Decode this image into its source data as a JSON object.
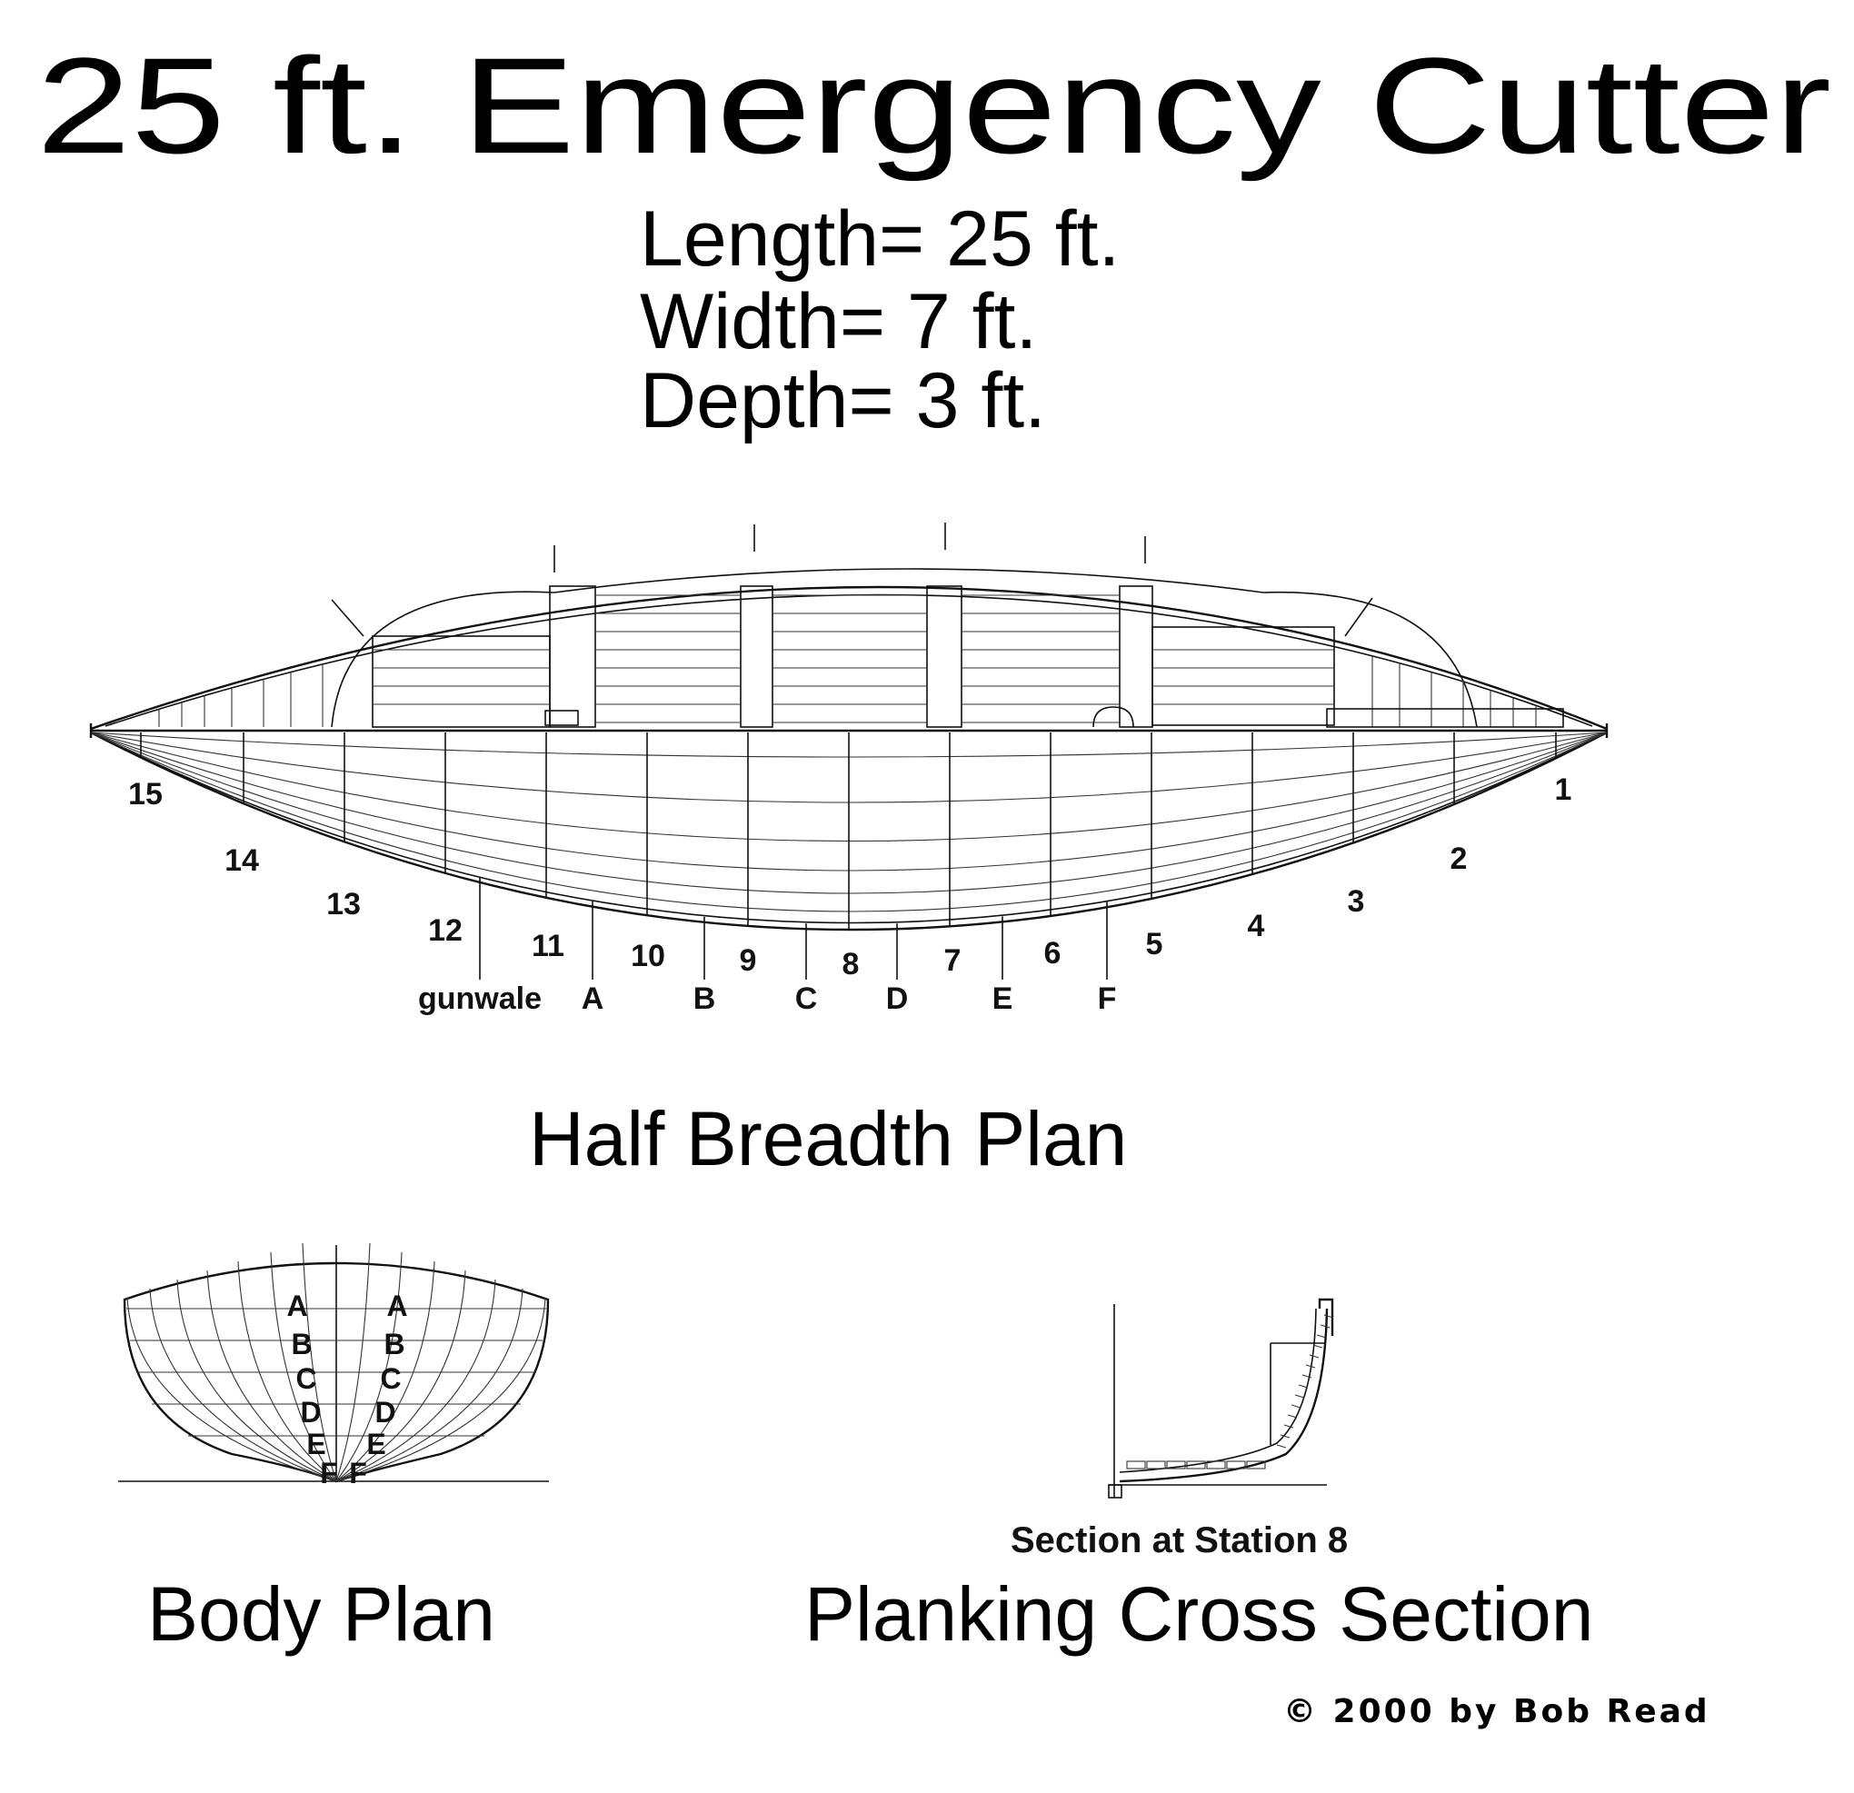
{
  "title": "25 ft. Emergency Cutter",
  "specs": [
    "Length= 25 ft.",
    "Width= 7 ft.",
    "Depth= 3 ft."
  ],
  "half_breadth": {
    "caption": "Half Breadth Plan",
    "stations": [
      "1",
      "2",
      "3",
      "4",
      "5",
      "6",
      "7",
      "8",
      "9",
      "10",
      "11",
      "12",
      "13",
      "14",
      "15"
    ],
    "waterlines": [
      "gunwale",
      "A",
      "B",
      "C",
      "D",
      "E",
      "F"
    ]
  },
  "body_plan": {
    "caption": "Body Plan",
    "left_labels": [
      "A",
      "B",
      "C",
      "D",
      "E",
      "F"
    ],
    "right_labels": [
      "A",
      "B",
      "C",
      "D",
      "E",
      "F"
    ]
  },
  "cross_section": {
    "subcaption": "Section at Station 8",
    "caption": "Planking Cross Section"
  },
  "copyright": "© 2000 by Bob Read"
}
